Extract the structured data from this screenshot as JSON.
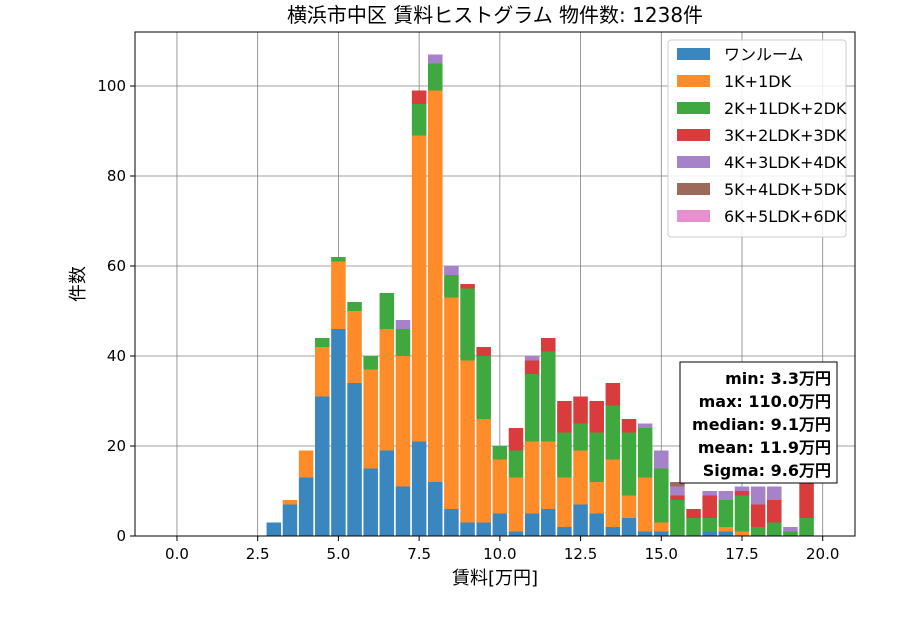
{
  "chart_data": {
    "type": "bar",
    "stacked": true,
    "title": "横浜市中区 賃料ヒストグラム 物件数: 1238件",
    "xlabel": "賃料[万円]",
    "ylabel": "件数",
    "xlim": [
      -1.3,
      21.0
    ],
    "ylim": [
      0,
      112
    ],
    "xticks": [
      "0.0",
      "2.5",
      "5.0",
      "7.5",
      "10.0",
      "12.5",
      "15.0",
      "17.5",
      "20.0"
    ],
    "xtick_values": [
      0,
      2.5,
      5,
      7.5,
      10,
      12.5,
      15,
      17.5,
      20
    ],
    "yticks": [
      "0",
      "20",
      "40",
      "60",
      "80",
      "100"
    ],
    "ytick_values": [
      0,
      20,
      40,
      60,
      80,
      100
    ],
    "grid": true,
    "legend_position": "upper right",
    "bin_width": 0.5,
    "x": [
      3.0,
      3.5,
      4.0,
      4.5,
      5.0,
      5.5,
      6.0,
      6.5,
      7.0,
      7.5,
      8.0,
      8.5,
      9.0,
      9.5,
      10.0,
      10.5,
      11.0,
      11.5,
      12.0,
      12.5,
      13.0,
      13.5,
      14.0,
      14.5,
      15.0,
      15.5,
      16.0,
      16.5,
      17.0,
      17.5,
      18.0,
      18.5,
      19.0,
      19.5
    ],
    "series": [
      {
        "name": "ワンルーム",
        "color": "#3a87c0",
        "values": [
          3,
          7,
          13,
          31,
          46,
          34,
          15,
          19,
          11,
          21,
          12,
          6,
          3,
          3,
          5,
          1,
          5,
          6,
          2,
          7,
          5,
          2,
          4,
          1,
          1,
          0,
          0,
          1,
          1,
          0,
          0,
          0,
          0,
          0
        ]
      },
      {
        "name": "1K+1DK",
        "color": "#ff8c28",
        "values": [
          0,
          1,
          6,
          11,
          15,
          16,
          22,
          27,
          29,
          68,
          87,
          47,
          36,
          23,
          12,
          12,
          16,
          15,
          11,
          12,
          7,
          15,
          5,
          12,
          2,
          0,
          0,
          0,
          1,
          1,
          0,
          0,
          0,
          0
        ]
      },
      {
        "name": "2K+1LDK+2DK",
        "color": "#3fa83f",
        "values": [
          0,
          0,
          0,
          2,
          1,
          2,
          3,
          8,
          6,
          7,
          6,
          5,
          16,
          14,
          3,
          6,
          15,
          20,
          10,
          6,
          11,
          12,
          14,
          11,
          12,
          8,
          4,
          3,
          6,
          8,
          2,
          3,
          1,
          4
        ]
      },
      {
        "name": "3K+2LDK+3DK",
        "color": "#d83c3c",
        "values": [
          0,
          0,
          0,
          0,
          0,
          0,
          0,
          0,
          0,
          3,
          0,
          0,
          1,
          2,
          0,
          5,
          3,
          3,
          7,
          6,
          7,
          5,
          3,
          0,
          0,
          1,
          2,
          5,
          0,
          1,
          5,
          5,
          0,
          10
        ]
      },
      {
        "name": "4K+3LDK+4DK",
        "color": "#a683c8",
        "values": [
          0,
          0,
          0,
          0,
          0,
          0,
          0,
          0,
          2,
          0,
          2,
          2,
          0,
          0,
          0,
          0,
          1,
          0,
          0,
          0,
          0,
          0,
          0,
          1,
          4,
          2,
          0,
          1,
          2,
          1,
          4,
          3,
          1,
          2
        ]
      },
      {
        "name": "5K+4LDK+5DK",
        "color": "#9c6a5a",
        "values": [
          0,
          0,
          0,
          0,
          0,
          0,
          0,
          0,
          0,
          0,
          0,
          0,
          0,
          0,
          0,
          0,
          0,
          0,
          0,
          0,
          0,
          0,
          0,
          0,
          0,
          1,
          0,
          0,
          0,
          0,
          0,
          0,
          0,
          0
        ]
      },
      {
        "name": "6K+5LDK+6DK",
        "color": "#e88fd0",
        "values": [
          0,
          0,
          0,
          0,
          0,
          0,
          0,
          0,
          0,
          0,
          0,
          0,
          0,
          0,
          0,
          0,
          0,
          0,
          0,
          0,
          0,
          0,
          0,
          0,
          0,
          0,
          0,
          0,
          0,
          0,
          0,
          0,
          0,
          0
        ]
      }
    ],
    "stats_box": [
      "min: 3.3万円",
      "max: 110.0万円",
      "median: 9.1万円",
      "mean: 11.9万円",
      "Sigma: 9.6万円"
    ]
  }
}
